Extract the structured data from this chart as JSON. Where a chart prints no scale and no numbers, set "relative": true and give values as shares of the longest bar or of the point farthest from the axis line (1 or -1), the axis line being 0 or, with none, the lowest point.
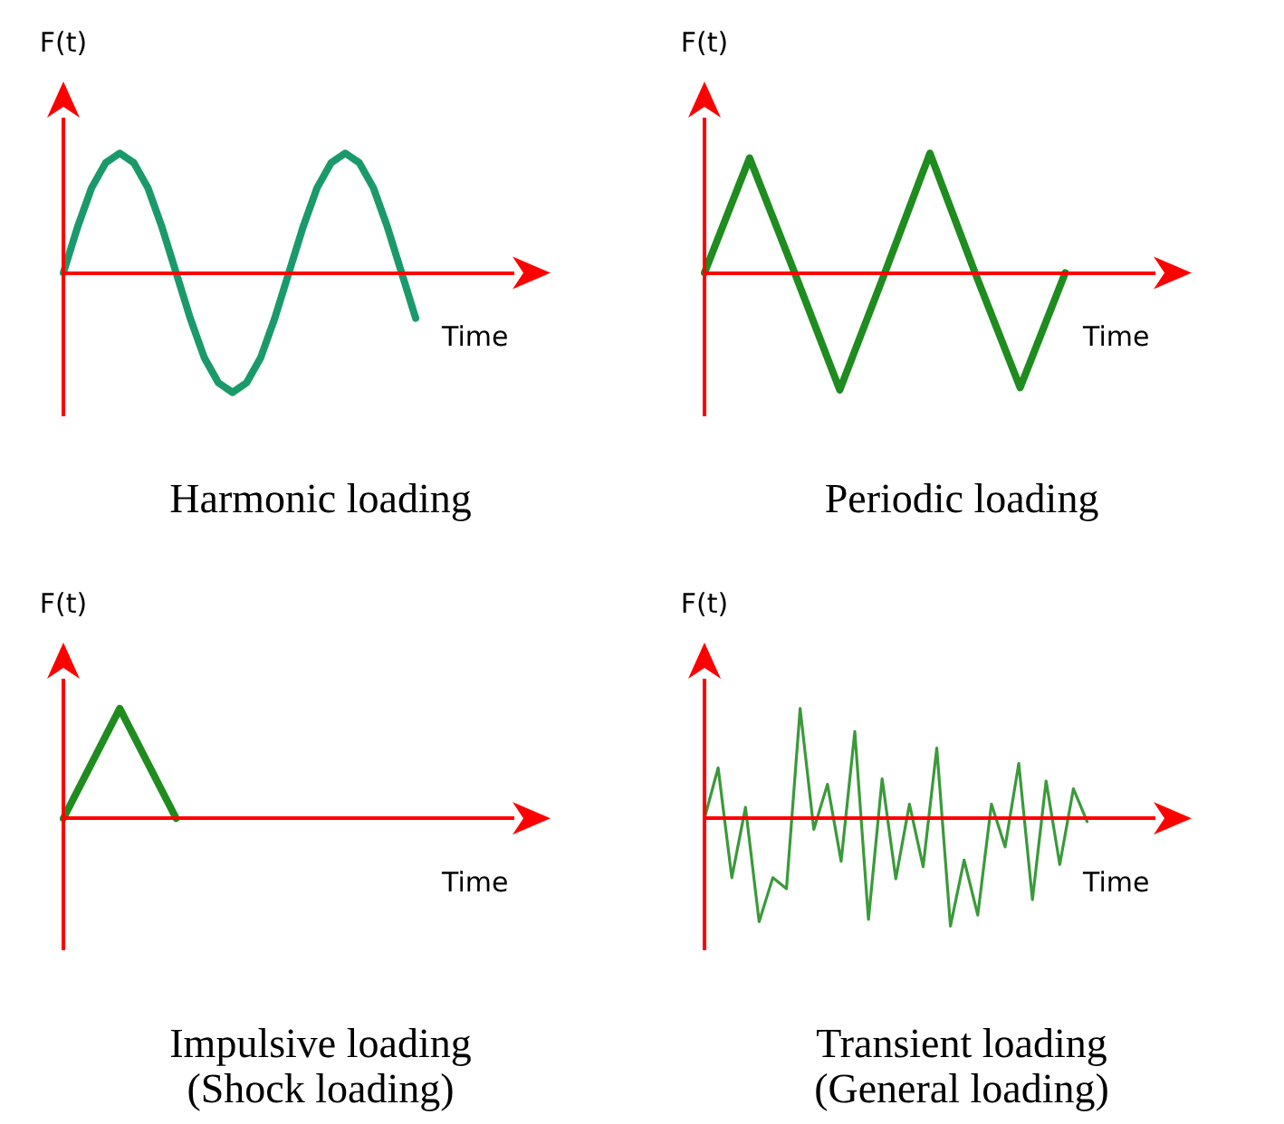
{
  "chart_data": [
    {
      "type": "line",
      "title": "Harmonic loading",
      "xlabel": "Time",
      "ylabel": "F(t)",
      "relative": true,
      "marker": "none",
      "line_style": "solid",
      "ref_lines": [
        {
          "axis": "y",
          "value": 0,
          "color": "#ff0000"
        }
      ],
      "categories": [
        null,
        null,
        null,
        null,
        null,
        null,
        null,
        null,
        null,
        null,
        null,
        null,
        null,
        null,
        null,
        null,
        null,
        null,
        null,
        null,
        null,
        null,
        null,
        null,
        null,
        null,
        null,
        null,
        null,
        null,
        null,
        null,
        null
      ],
      "series": [
        {
          "color": "#1a9a6a",
          "values": [
            0,
            0.38,
            0.71,
            0.92,
            1,
            0.92,
            0.71,
            0.38,
            0,
            -0.38,
            -0.71,
            -0.92,
            -1,
            -0.92,
            -0.71,
            -0.38,
            0,
            0.38,
            0.71,
            0.92,
            1,
            0.92,
            0.71,
            0.38,
            0,
            -0.38,
            null,
            null,
            null,
            null,
            null,
            null,
            null
          ]
        }
      ]
    },
    {
      "type": "line",
      "title": "Periodic loading",
      "xlabel": "Time",
      "ylabel": "F(t)",
      "relative": true,
      "marker": "none",
      "line_style": "solid",
      "ref_lines": [
        {
          "axis": "y",
          "value": 0,
          "color": "#ff0000"
        }
      ],
      "categories": [
        null,
        null,
        null,
        null,
        null,
        null,
        null,
        null,
        null,
        null,
        null
      ],
      "series": [
        {
          "color": "#1e8c1e",
          "values": [
            0,
            0.96,
            0,
            -0.98,
            0,
            1,
            0,
            -0.96,
            0,
            null,
            null
          ]
        }
      ]
    },
    {
      "type": "line",
      "title": "Impulsive loading",
      "subtitle": "(Shock loading)",
      "xlabel": "Time",
      "ylabel": "F(t)",
      "relative": true,
      "marker": "none",
      "line_style": "solid",
      "ref_lines": [
        {
          "axis": "y",
          "value": 0,
          "color": "#ff0000"
        }
      ],
      "categories": [
        null,
        null,
        null,
        null,
        null,
        null,
        null,
        null,
        null
      ],
      "series": [
        {
          "color": "#1e8c1e",
          "values": [
            0,
            1,
            0,
            null,
            null,
            null,
            null,
            null,
            null
          ]
        }
      ]
    },
    {
      "type": "line",
      "title": "Transient loading",
      "subtitle": "(General loading)",
      "xlabel": "Time",
      "ylabel": "F(t)",
      "relative": true,
      "marker": "none",
      "line_style": "solid",
      "ref_lines": [
        {
          "axis": "y",
          "value": 0,
          "color": "#ff0000"
        }
      ],
      "categories": [
        null,
        null,
        null,
        null,
        null,
        null,
        null,
        null,
        null,
        null,
        null,
        null,
        null,
        null,
        null,
        null,
        null,
        null,
        null,
        null,
        null,
        null,
        null,
        null,
        null,
        null,
        null,
        null,
        null,
        null,
        null,
        null,
        null,
        null
      ],
      "series": [
        {
          "color": "#3a9a3a",
          "values": [
            0,
            0.46,
            -0.54,
            0.1,
            -0.94,
            -0.54,
            -0.64,
            1,
            -0.1,
            0.31,
            -0.39,
            0.79,
            -0.92,
            0.36,
            -0.55,
            0.13,
            -0.44,
            0.64,
            -0.98,
            -0.38,
            -0.88,
            0.13,
            -0.26,
            0.5,
            -0.74,
            0.34,
            -0.42,
            0.27,
            -0.03,
            null,
            null,
            null,
            null,
            null
          ]
        }
      ]
    }
  ]
}
